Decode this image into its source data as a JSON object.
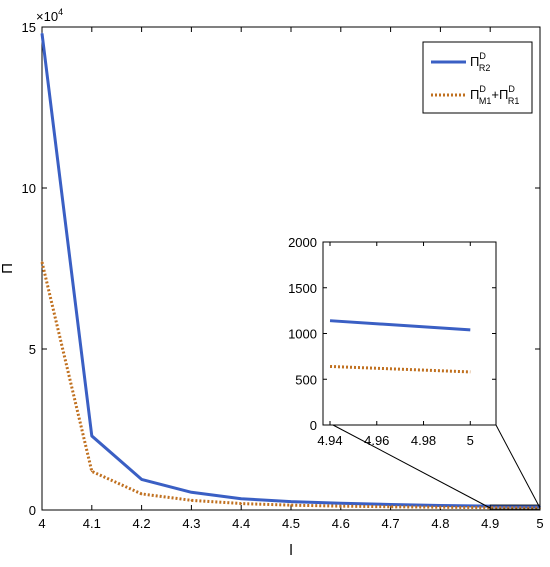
{
  "chart_data": [
    {
      "panel": "main",
      "type": "line",
      "xlabel": "l",
      "ylabel": "Π",
      "x": [
        4.0,
        4.1,
        4.2,
        4.3,
        4.4,
        4.5,
        4.6,
        4.7,
        4.8,
        4.9,
        5.0
      ],
      "xlim": [
        4,
        5
      ],
      "ylim": [
        0,
        150000
      ],
      "y_exponent_label": "×10",
      "y_exponent_power": "4",
      "xticks": [
        "4",
        "4.1",
        "4.2",
        "4.3",
        "4.4",
        "4.5",
        "4.6",
        "4.7",
        "4.8",
        "4.9",
        "5"
      ],
      "yticks": [
        "0",
        "5",
        "10",
        "15"
      ],
      "ytick_values": [
        0,
        50000,
        100000,
        150000
      ],
      "grid": false,
      "legend_position": "top-right",
      "series": [
        {
          "legend_base": "Π",
          "legend_sup": "D",
          "legend_sub": "R2",
          "color": "#3a5fc4",
          "style": "solid",
          "values": [
            148000,
            23000,
            9500,
            5500,
            3500,
            2600,
            2100,
            1700,
            1400,
            1200,
            1050
          ]
        },
        {
          "legend_base": "Π",
          "legend_sup": "D",
          "legend_sub": "M1",
          "legend_plus": "+",
          "legend_base2": "Π",
          "legend_sup2": "D",
          "legend_sub2": "R1",
          "color": "#c0701f",
          "style": "dotted",
          "values": [
            77000,
            12000,
            5000,
            3000,
            2000,
            1500,
            1200,
            1000,
            850,
            720,
            600
          ]
        }
      ]
    },
    {
      "panel": "inset",
      "type": "line",
      "x": [
        4.94,
        5.0
      ],
      "xlim": [
        4.937,
        5.011
      ],
      "ylim": [
        0,
        2000
      ],
      "xticks": [
        "4.94",
        "4.96",
        "4.98",
        "5"
      ],
      "xtick_values": [
        4.94,
        4.96,
        4.98,
        5.0
      ],
      "yticks": [
        "0",
        "500",
        "1000",
        "1500",
        "2000"
      ],
      "ytick_values": [
        0,
        500,
        1000,
        1500,
        2000
      ],
      "grid": false,
      "series": [
        {
          "color": "#3a5fc4",
          "style": "solid",
          "values": [
            1140,
            1040
          ]
        },
        {
          "color": "#c0701f",
          "style": "dotted",
          "values": [
            640,
            580
          ]
        }
      ]
    }
  ]
}
